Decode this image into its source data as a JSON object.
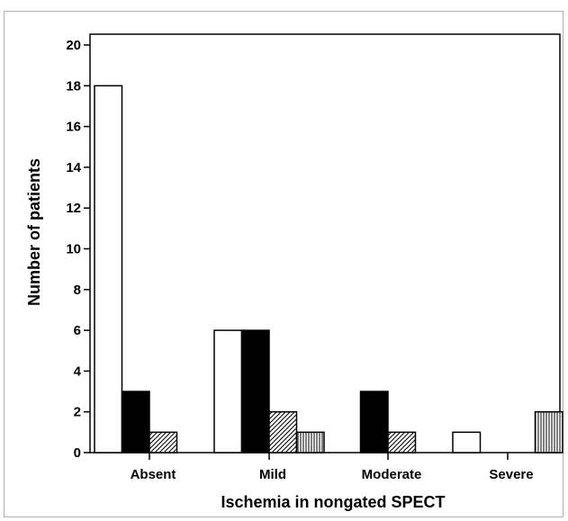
{
  "chart_data": {
    "type": "bar",
    "title": "",
    "xlabel": "Ischemia in nongated SPECT",
    "ylabel": "Number of patients",
    "categories": [
      "Absent",
      "Mild",
      "Moderate",
      "Severe"
    ],
    "ylim": [
      0,
      20
    ],
    "yticks": [
      0,
      2,
      4,
      6,
      8,
      10,
      12,
      14,
      16,
      18,
      20
    ],
    "grid": false,
    "legend": "none",
    "series": [
      {
        "fill": "white",
        "color": "#ffffff",
        "values": [
          18,
          6,
          0,
          1
        ]
      },
      {
        "fill": "solid",
        "color": "#000000",
        "values": [
          3,
          6,
          3,
          0
        ]
      },
      {
        "fill": "diagonal",
        "color": "#000000",
        "values": [
          1,
          2,
          1,
          0
        ]
      },
      {
        "fill": "vertical",
        "color": "#000000",
        "values": [
          0,
          1,
          0,
          2
        ]
      }
    ]
  }
}
